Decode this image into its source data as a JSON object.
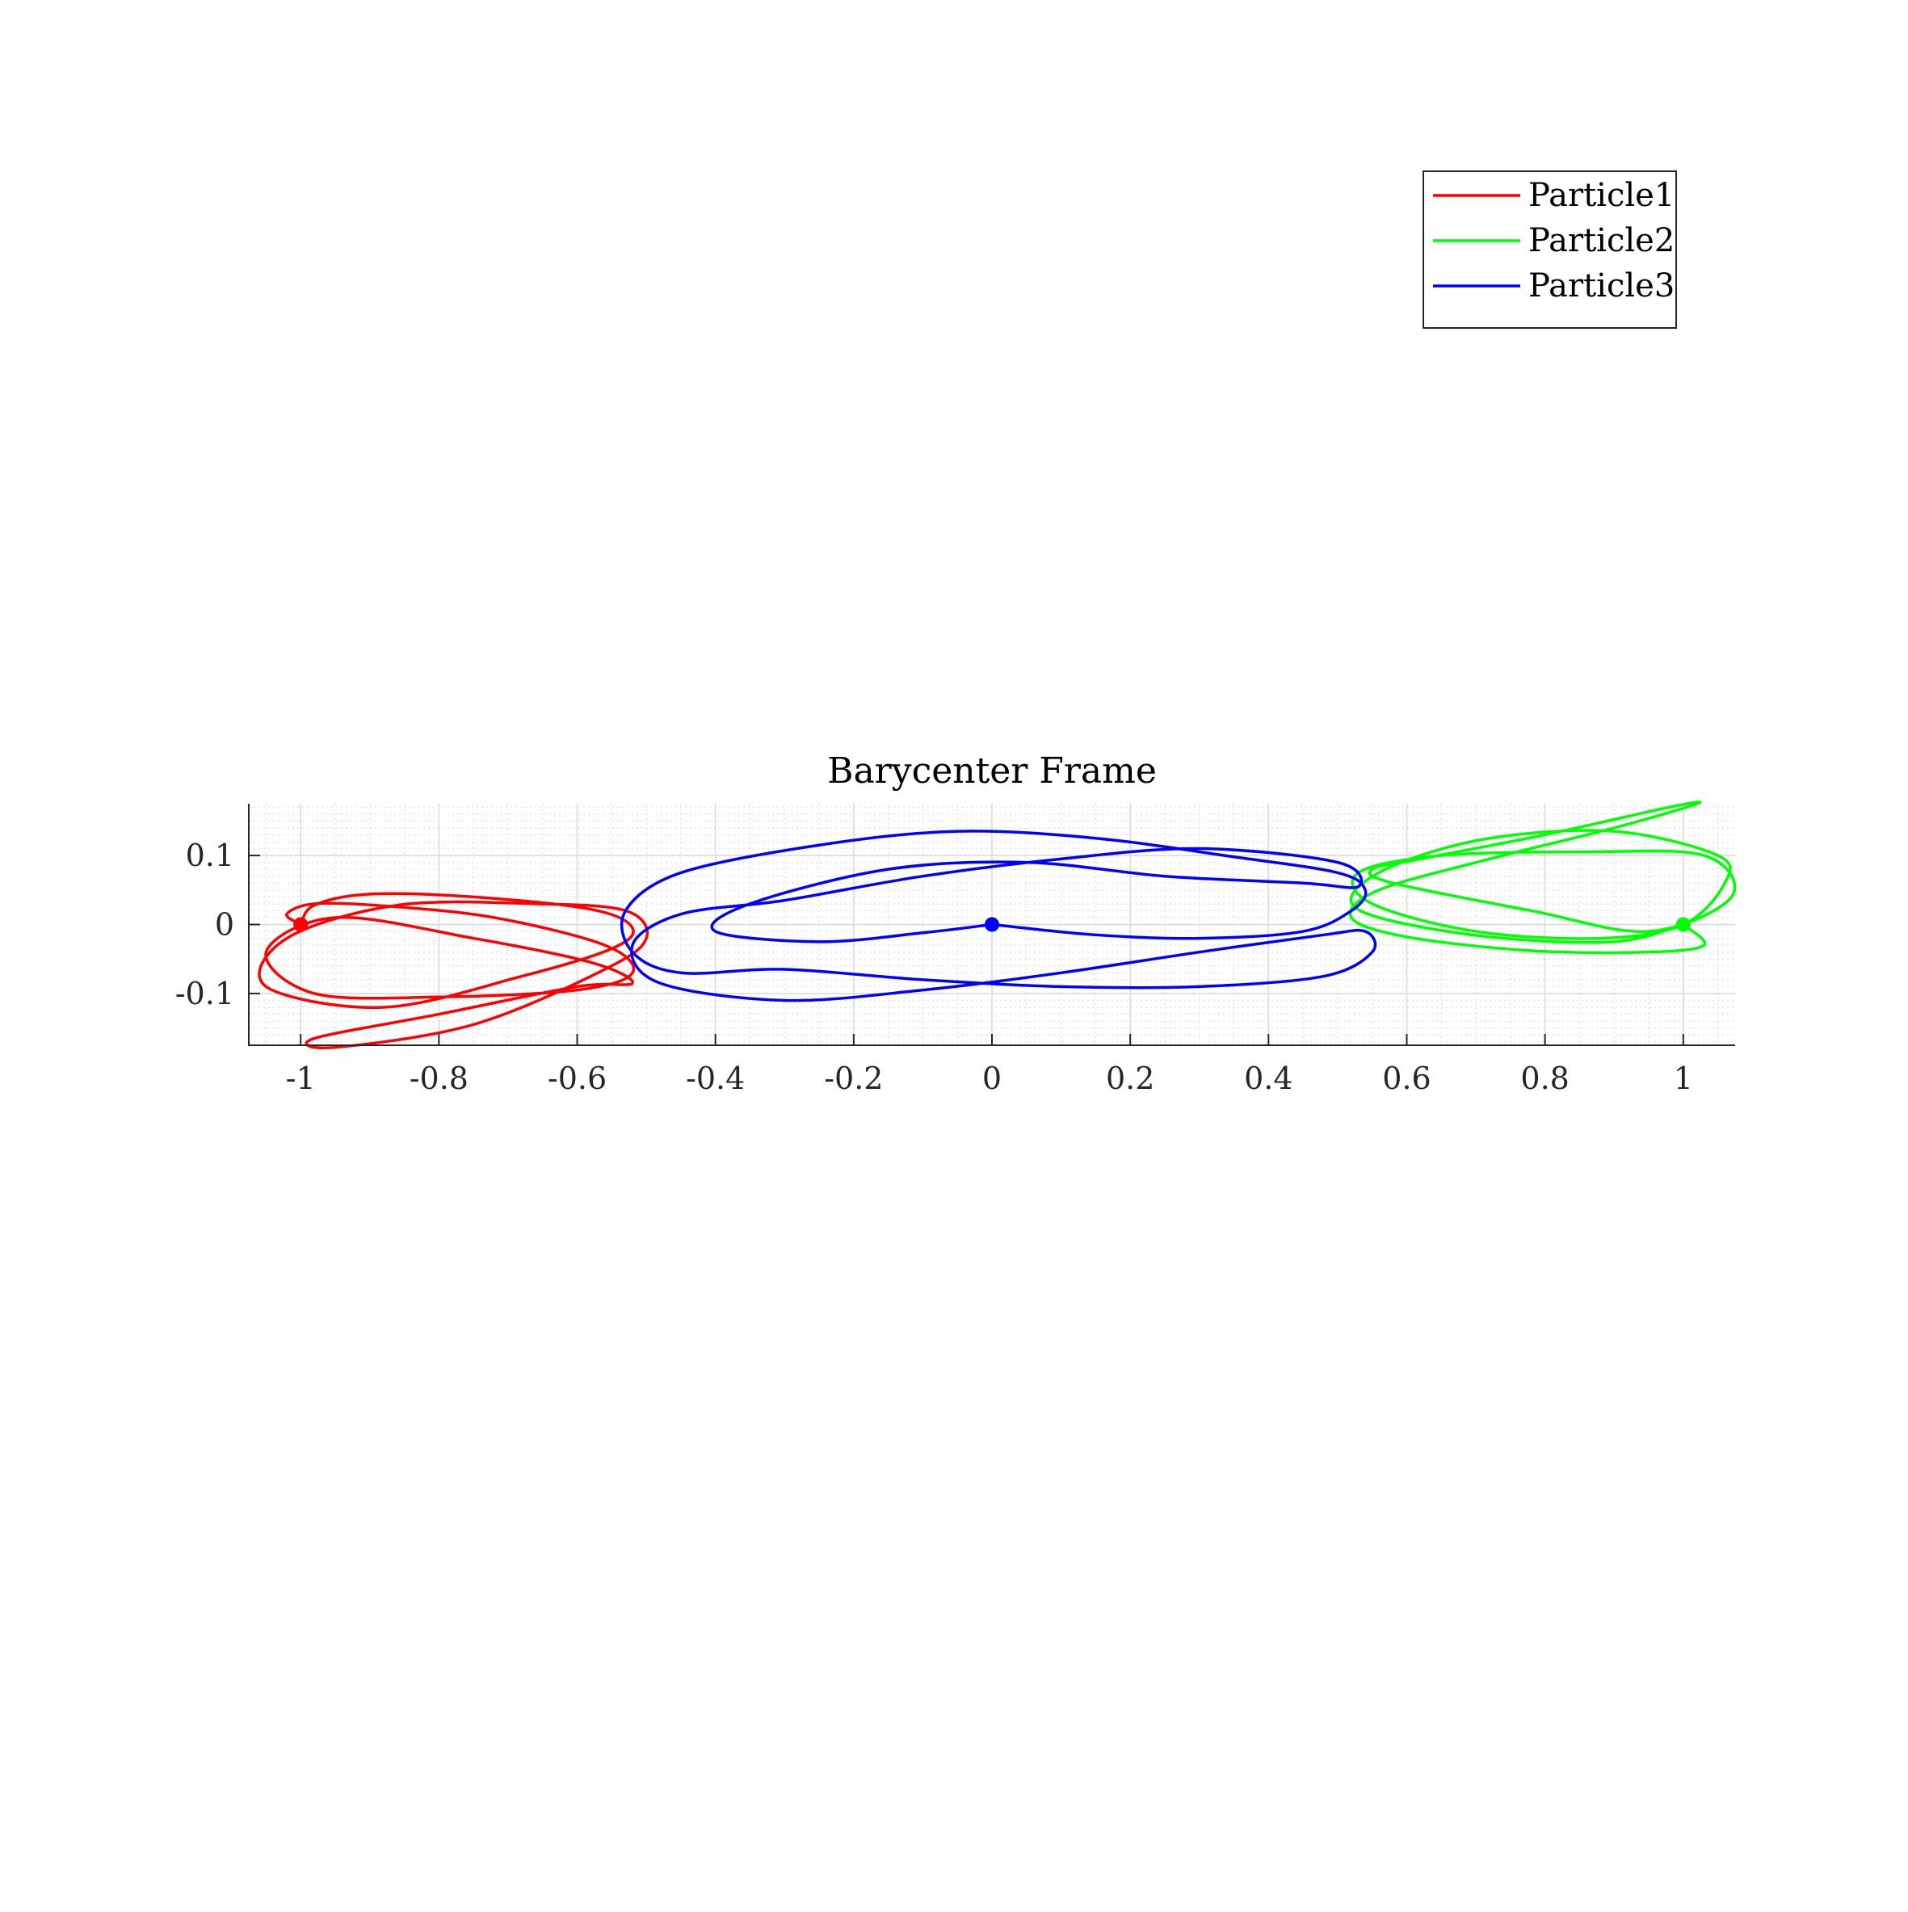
{
  "chart_data": {
    "type": "line",
    "title": "Barycenter Frame",
    "xlabel": "",
    "ylabel": "",
    "xlim": [
      -1.075,
      1.075
    ],
    "ylim": [
      -0.175,
      0.175
    ],
    "x_ticks": [
      -1,
      -0.8,
      -0.6,
      -0.4,
      -0.2,
      0,
      0.2,
      0.4,
      0.6,
      0.8,
      1
    ],
    "x_tick_labels": [
      "-1",
      "-0.8",
      "-0.6",
      "-0.4",
      "-0.2",
      "0",
      "0.2",
      "0.4",
      "0.6",
      "0.8",
      "1"
    ],
    "y_ticks": [
      -0.1,
      0,
      0.1
    ],
    "y_tick_labels": [
      "-0.1",
      "0",
      "0.1"
    ],
    "grid": true,
    "minor_grid": true,
    "legend_position": "top-right",
    "series": [
      {
        "name": "Particle1",
        "color": "#ff0000",
        "start": [
          -1,
          0
        ],
        "points": [
          [
            -1,
            0
          ],
          [
            -0.98,
            0.028
          ],
          [
            -0.9,
            0.044
          ],
          [
            -0.75,
            0.04
          ],
          [
            -0.58,
            0.022
          ],
          [
            -0.52,
            -0.005
          ],
          [
            -0.55,
            -0.035
          ],
          [
            -0.68,
            -0.075
          ],
          [
            -0.88,
            -0.12
          ],
          [
            -1.05,
            -0.09
          ],
          [
            -1.02,
            -0.02
          ],
          [
            -0.86,
            0.028
          ],
          [
            -0.66,
            0.03
          ],
          [
            -0.53,
            0.02
          ],
          [
            -0.5,
            -0.02
          ],
          [
            -0.56,
            -0.065
          ],
          [
            -0.75,
            -0.145
          ],
          [
            -0.95,
            -0.178
          ],
          [
            -0.98,
            -0.165
          ],
          [
            -0.8,
            -0.13
          ],
          [
            -0.6,
            -0.09
          ],
          [
            -0.52,
            -0.085
          ],
          [
            -0.58,
            -0.055
          ],
          [
            -0.75,
            -0.02
          ],
          [
            -0.95,
            0.01
          ],
          [
            -1.05,
            -0.04
          ],
          [
            -0.98,
            -0.1
          ],
          [
            -0.8,
            -0.105
          ],
          [
            -0.6,
            -0.095
          ],
          [
            -0.52,
            -0.07
          ],
          [
            -0.56,
            -0.03
          ],
          [
            -0.72,
            0.01
          ],
          [
            -0.88,
            0.027
          ],
          [
            -0.98,
            0.03
          ],
          [
            -1.02,
            0.015
          ],
          [
            -1,
            0
          ]
        ]
      },
      {
        "name": "Particle2",
        "color": "#00ff00",
        "start": [
          1,
          0
        ],
        "points": [
          [
            1,
            0
          ],
          [
            1.03,
            -0.03
          ],
          [
            0.95,
            -0.04
          ],
          [
            0.78,
            -0.038
          ],
          [
            0.6,
            -0.018
          ],
          [
            0.52,
            0.01
          ],
          [
            0.56,
            0.05
          ],
          [
            0.72,
            0.095
          ],
          [
            0.9,
            0.14
          ],
          [
            1.02,
            0.175
          ],
          [
            0.98,
            0.17
          ],
          [
            0.8,
            0.13
          ],
          [
            0.62,
            0.095
          ],
          [
            0.55,
            0.08
          ],
          [
            0.58,
            0.06
          ],
          [
            0.78,
            0.02
          ],
          [
            0.95,
            -0.01
          ],
          [
            1.07,
            0.04
          ],
          [
            1.03,
            0.1
          ],
          [
            0.85,
            0.105
          ],
          [
            0.65,
            0.1
          ],
          [
            0.53,
            0.075
          ],
          [
            0.55,
            0.03
          ],
          [
            0.7,
            -0.01
          ],
          [
            0.88,
            -0.02
          ],
          [
            1.0,
            0.0
          ],
          [
            1.06,
            0.06
          ],
          [
            1.05,
            0.1
          ],
          [
            0.9,
            0.135
          ],
          [
            0.72,
            0.125
          ],
          [
            0.58,
            0.085
          ],
          [
            0.52,
            0.04
          ],
          [
            0.56,
            0.01
          ],
          [
            0.72,
            -0.018
          ],
          [
            0.9,
            -0.025
          ],
          [
            1,
            0
          ]
        ]
      },
      {
        "name": "Particle3",
        "color": "#0000ff",
        "start": [
          0,
          0
        ],
        "points": [
          [
            0,
            0
          ],
          [
            0.15,
            -0.015
          ],
          [
            0.3,
            -0.02
          ],
          [
            0.45,
            -0.01
          ],
          [
            0.52,
            0.02
          ],
          [
            0.54,
            0.05
          ],
          [
            0.5,
            0.075
          ],
          [
            0.35,
            0.098
          ],
          [
            0.15,
            0.125
          ],
          [
            -0.05,
            0.135
          ],
          [
            -0.25,
            0.115
          ],
          [
            -0.45,
            0.075
          ],
          [
            -0.53,
            0.02
          ],
          [
            -0.52,
            -0.04
          ],
          [
            -0.45,
            -0.07
          ],
          [
            -0.3,
            -0.065
          ],
          [
            -0.1,
            -0.08
          ],
          [
            0.1,
            -0.09
          ],
          [
            0.3,
            -0.09
          ],
          [
            0.48,
            -0.075
          ],
          [
            0.55,
            -0.04
          ],
          [
            0.54,
            -0.01
          ],
          [
            0.48,
            -0.015
          ],
          [
            0.3,
            -0.04
          ],
          [
            0.1,
            -0.07
          ],
          [
            -0.1,
            -0.095
          ],
          [
            -0.3,
            -0.11
          ],
          [
            -0.48,
            -0.085
          ],
          [
            -0.52,
            -0.03
          ],
          [
            -0.45,
            0.015
          ],
          [
            -0.3,
            0.035
          ],
          [
            -0.1,
            0.07
          ],
          [
            0.1,
            0.095
          ],
          [
            0.3,
            0.11
          ],
          [
            0.5,
            0.09
          ],
          [
            0.53,
            0.055
          ],
          [
            0.45,
            0.06
          ],
          [
            0.25,
            0.07
          ],
          [
            0.05,
            0.09
          ],
          [
            -0.15,
            0.08
          ],
          [
            -0.35,
            0.03
          ],
          [
            -0.4,
            -0.01
          ],
          [
            -0.25,
            -0.025
          ],
          [
            -0.1,
            -0.012
          ],
          [
            0,
            0
          ]
        ]
      }
    ]
  }
}
